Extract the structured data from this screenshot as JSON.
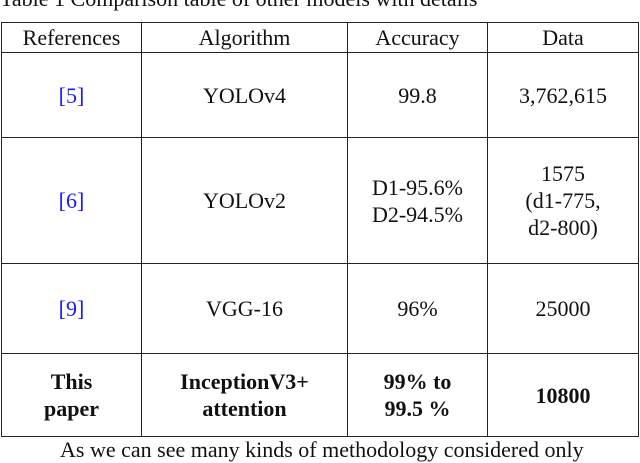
{
  "caption": "Table 1 Comparison table of other models with details",
  "table": {
    "headers": [
      "References",
      "Algorithm",
      "Accuracy",
      "Data"
    ],
    "rows": [
      {
        "reference": "[5]",
        "algorithm": [
          "YOLOv4"
        ],
        "accuracy": [
          "99.8"
        ],
        "data": [
          "3,762,615"
        ]
      },
      {
        "reference": "[6]",
        "algorithm": [
          "YOLOv2"
        ],
        "accuracy": [
          "D1-95.6%",
          "D2-94.5%"
        ],
        "data": [
          "1575",
          "(d1-775,",
          "d2-800)"
        ]
      },
      {
        "reference": "[9]",
        "algorithm": [
          "VGG-16"
        ],
        "accuracy": [
          "96%"
        ],
        "data": [
          "25000"
        ]
      },
      {
        "reference": [
          "This",
          "paper"
        ],
        "algorithm": [
          "InceptionV3+",
          "attention"
        ],
        "accuracy": [
          "99% to",
          "99.5 %"
        ],
        "data": [
          "10800"
        ]
      }
    ]
  },
  "paragraph": "As we can see many kinds of methodology considered only",
  "colors": {
    "link": "#1a1aff",
    "border": "#222222",
    "text": "#111111"
  }
}
